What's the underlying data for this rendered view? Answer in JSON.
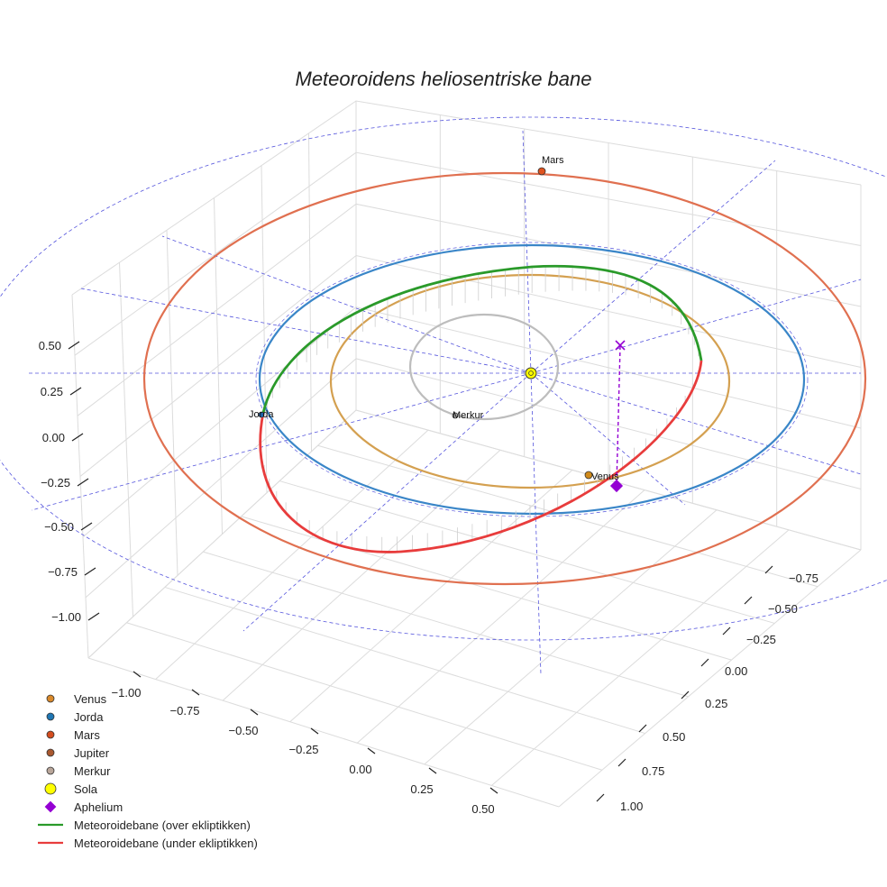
{
  "chart_data": {
    "type": "line3d",
    "title": "Meteoroidens heliosentriske bane",
    "z_ticks": [
      "0.50",
      "0.25",
      "0.00",
      "−0.25",
      "−0.50",
      "−0.75",
      "−1.00"
    ],
    "x_ticks": [
      "−1.00",
      "−0.75",
      "−0.50",
      "−0.25",
      "0.00",
      "0.25",
      "0.50"
    ],
    "y_ticks": [
      "−0.75",
      "−0.50",
      "−0.25",
      "0.00",
      "0.25",
      "0.50",
      "0.75",
      "1.00"
    ],
    "planet_labels": [
      {
        "name": "Mars",
        "color": "#e0531f"
      },
      {
        "name": "Jorda",
        "color": "#1f6fc0"
      },
      {
        "name": "Merkur",
        "color": "#a9a9a9"
      },
      {
        "name": "Venus",
        "color": "#d08a1a"
      }
    ],
    "orbits": [
      {
        "name": "Mars",
        "color": "#e07050"
      },
      {
        "name": "Jorda",
        "color": "#3a86c8"
      },
      {
        "name": "Venus",
        "color": "#d4a050"
      },
      {
        "name": "Merkur",
        "color": "#bdbdbd"
      }
    ],
    "legend": [
      {
        "label": "Venus",
        "marker": "circle",
        "color": "#d9892b"
      },
      {
        "label": "Jorda",
        "marker": "circle",
        "color": "#1f77b4"
      },
      {
        "label": "Mars",
        "marker": "circle",
        "color": "#d44d1f"
      },
      {
        "label": "Jupiter",
        "marker": "circle",
        "color": "#a9582f"
      },
      {
        "label": "Merkur",
        "marker": "circle",
        "color": "#b9a69a"
      },
      {
        "label": "Sola",
        "marker": "circle-large",
        "color": "#ffff00"
      },
      {
        "label": "Aphelium",
        "marker": "diamond",
        "color": "#9400d3"
      },
      {
        "label": "Meteoroidebane (over ekliptikken)",
        "marker": "line",
        "color": "#2a9a2a"
      },
      {
        "label": "Meteoroidebane (under ekliptikken)",
        "marker": "line",
        "color": "#e83c3c"
      }
    ],
    "meteoroid_colors": {
      "above": "#2a9a2a",
      "below": "#e83c3c"
    },
    "aphelion_color": "#9400d3",
    "guide_color": "#5555dd",
    "grid_color": "#dcdcdc",
    "legend_loc": "lower left"
  }
}
